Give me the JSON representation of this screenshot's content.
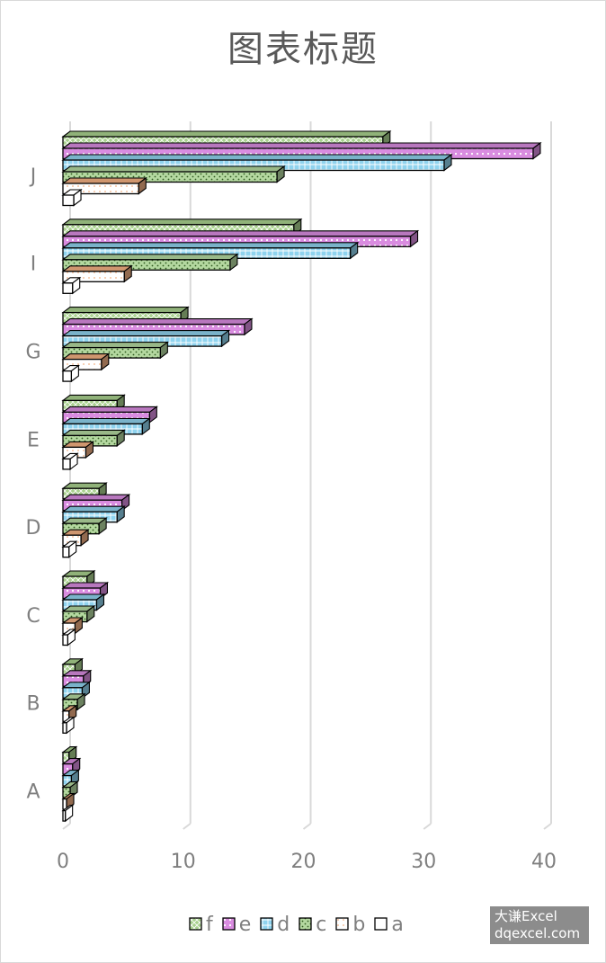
{
  "chart_data": {
    "type": "bar",
    "orientation": "horizontal",
    "title": "图表标题",
    "categories": [
      "A",
      "B",
      "C",
      "D",
      "E",
      "G",
      "I",
      "J"
    ],
    "series": [
      {
        "name": "f",
        "color": "#a9d18e",
        "pattern": "crosshatch",
        "values": [
          0.5,
          1,
          2,
          3,
          4.5,
          9.8,
          19.2,
          26.6
        ]
      },
      {
        "name": "e",
        "color": "#d98ce0",
        "pattern": "diamond-dots",
        "values": [
          0.8,
          1.7,
          3.1,
          4.9,
          7.2,
          15.1,
          28.9,
          39.1
        ]
      },
      {
        "name": "d",
        "color": "#8fd3ee",
        "pattern": "weave",
        "values": [
          0.7,
          1.6,
          2.8,
          4.5,
          6.6,
          13.2,
          23.9,
          31.7
        ]
      },
      {
        "name": "c",
        "color": "#b4d8a0",
        "pattern": "dots-dense",
        "values": [
          0.6,
          1.2,
          2,
          3,
          4.5,
          8.1,
          13.9,
          17.8
        ]
      },
      {
        "name": "b",
        "color": "#f4b183",
        "pattern": "dots-sparse",
        "values": [
          0.3,
          0.5,
          1,
          1.5,
          1.9,
          3.2,
          5.1,
          6.3
        ]
      },
      {
        "name": "a",
        "color": "#5b9bd5",
        "pattern": "none",
        "values": [
          0.2,
          0.3,
          0.4,
          0.5,
          0.6,
          0.7,
          0.8,
          0.9
        ]
      }
    ],
    "xlim": [
      0,
      40
    ],
    "xticks": [
      "0",
      "10",
      "20",
      "30",
      "40"
    ],
    "xlabel": "",
    "ylabel": "",
    "grid": "vertical",
    "legend_position": "bottom",
    "bar_style": "3d"
  },
  "watermark": {
    "line1": "大谦Excel",
    "line2": "dqexcel.com"
  }
}
